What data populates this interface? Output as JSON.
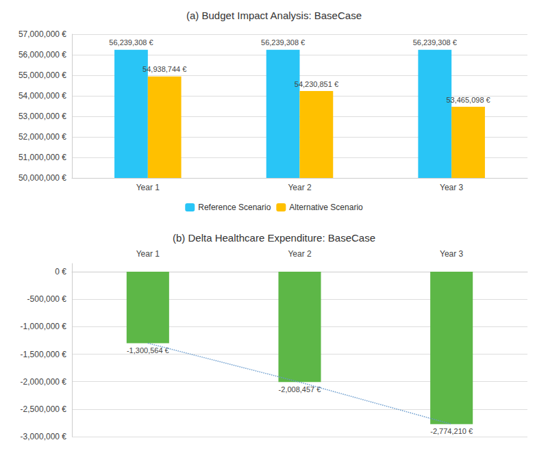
{
  "chart_data": [
    {
      "type": "bar",
      "title": "(a) Budget Impact Analysis: BaseCase",
      "categories": [
        "Year 1",
        "Year 2",
        "Year 3"
      ],
      "series": [
        {
          "name": "Reference Scenario",
          "color": "#29C5F6",
          "values": [
            56239308,
            56239308,
            56239308
          ],
          "value_labels": [
            "56,239,308 €",
            "56,239,308 €",
            "56,239,308 €"
          ]
        },
        {
          "name": "Alternative Scenario",
          "color": "#FFC000",
          "values": [
            54938744,
            54230851,
            53465098
          ],
          "value_labels": [
            "54,938,744 €",
            "54,230,851 €",
            "53,465,098 €"
          ]
        }
      ],
      "ylim": [
        50000000,
        57000000
      ],
      "yticks": [
        {
          "value": 50000000,
          "label": "50,000,000 €"
        },
        {
          "value": 51000000,
          "label": "51,000,000 €"
        },
        {
          "value": 52000000,
          "label": "52,000,000 €"
        },
        {
          "value": 53000000,
          "label": "53,000,000 €"
        },
        {
          "value": 54000000,
          "label": "54,000,000 €"
        },
        {
          "value": 55000000,
          "label": "55,000,000 €"
        },
        {
          "value": 56000000,
          "label": "56,000,000 €"
        },
        {
          "value": 57000000,
          "label": "57,000,000 €"
        }
      ],
      "grid": true,
      "data_labels": true,
      "legend": "bottom"
    },
    {
      "type": "bar",
      "title": "(b) Delta Healthcare Expenditure: BaseCase",
      "categories": [
        "Year 1",
        "Year 2",
        "Year 3"
      ],
      "series": [
        {
          "type": "bar",
          "color": "#5DB747",
          "values": [
            -1300564,
            -2008457,
            -2774210
          ],
          "data_labels": true,
          "value_labels": [
            "-1,300,564 €",
            "-2,008,457 €",
            "-2,774,210 €"
          ]
        },
        {
          "type": "line",
          "color": "#6699CC",
          "line_style": "dotted",
          "values": [
            -1300564,
            -2008457,
            -2774210
          ]
        }
      ],
      "ylim": [
        -3000000,
        150000
      ],
      "yticks": [
        {
          "value": 0,
          "label": "0 €"
        },
        {
          "value": -500000,
          "label": "-500,000 €"
        },
        {
          "value": -1000000,
          "label": "-1,000,000 €"
        },
        {
          "value": -1500000,
          "label": "-1,500,000 €"
        },
        {
          "value": -2000000,
          "label": "-2,000,000 €"
        },
        {
          "value": -2500000,
          "label": "-2,500,000 €"
        },
        {
          "value": -3000000,
          "label": "-3,000,000 €"
        }
      ],
      "grid": true
    }
  ]
}
